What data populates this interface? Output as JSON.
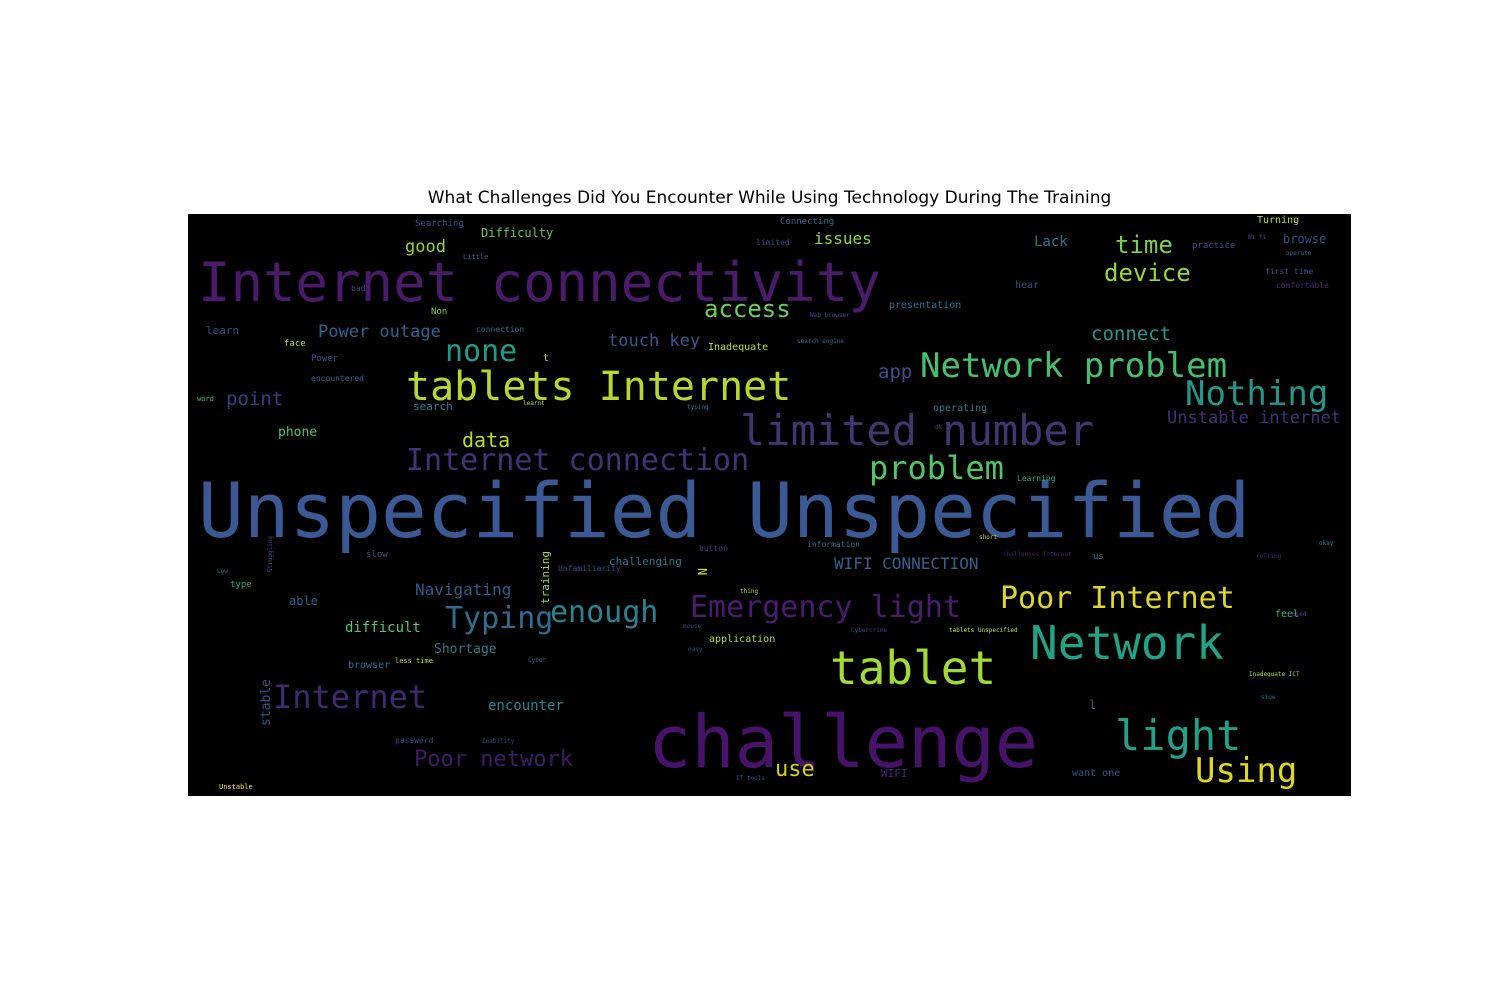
{
  "title": "What Challenges Did You Encounter While Using Technology During The Training",
  "words": [
    {
      "text": "Unspecified Unspecified",
      "color": "#3b5a95"
    },
    {
      "text": "Internet connectivity",
      "color": "#4a1a6b"
    },
    {
      "text": "challenge",
      "color": "#47136a"
    },
    {
      "text": "tablets Internet",
      "color": "#b8d62f"
    },
    {
      "text": "limited number",
      "color": "#41366f"
    },
    {
      "text": "Network problem",
      "color": "#46c06f"
    },
    {
      "text": "Nothing",
      "color": "#26958a"
    },
    {
      "text": "tablet",
      "color": "#a2da37"
    },
    {
      "text": "Network",
      "color": "#20a386"
    },
    {
      "text": "light",
      "color": "#21a08a"
    },
    {
      "text": "Using",
      "color": "#e0d721"
    },
    {
      "text": "Poor Internet",
      "color": "#ddd72b"
    },
    {
      "text": "Emergency light",
      "color": "#4b1b6e"
    },
    {
      "text": "Internet connection",
      "color": "#433274"
    },
    {
      "text": "problem",
      "color": "#52c569"
    },
    {
      "text": "Internet",
      "color": "#3f2a70"
    },
    {
      "text": "enough",
      "color": "#2c828e"
    },
    {
      "text": "Typing",
      "color": "#2f6c8d"
    },
    {
      "text": "Poor network",
      "color": "#3e1c65"
    },
    {
      "text": "none",
      "color": "#1f9c88"
    },
    {
      "text": "access",
      "color": "#6cce59"
    },
    {
      "text": "time",
      "color": "#7ad151"
    },
    {
      "text": "device",
      "color": "#93d741"
    },
    {
      "text": "connect",
      "color": "#22988a"
    },
    {
      "text": "data",
      "color": "#bddc2b"
    },
    {
      "text": "use",
      "color": "#d8d219"
    },
    {
      "text": "Unstable internet",
      "color": "#3c3378"
    },
    {
      "text": "WIFI CONNECTION",
      "color": "#34618d"
    },
    {
      "text": "point",
      "color": "#3f3b82"
    },
    {
      "text": "Power outage",
      "color": "#30648e"
    },
    {
      "text": "touch key",
      "color": "#35588c"
    },
    {
      "text": "app",
      "color": "#3c4f8a"
    },
    {
      "text": "good",
      "color": "#9ad43a"
    },
    {
      "text": "issues",
      "color": "#8fd644"
    },
    {
      "text": "Lack",
      "color": "#2a788e"
    },
    {
      "text": "Difficulty",
      "color": "#5fc863"
    },
    {
      "text": "Navigating",
      "color": "#2f5c8c"
    },
    {
      "text": "encounter",
      "color": "#23888e"
    },
    {
      "text": "Shortage",
      "color": "#2a7a8e"
    },
    {
      "text": "difficult",
      "color": "#5ec962"
    },
    {
      "text": "phone",
      "color": "#48c16e"
    },
    {
      "text": "search",
      "color": "#28838e"
    },
    {
      "text": "browse",
      "color": "#3c4b89"
    },
    {
      "text": "learn",
      "color": "#3a4c8a"
    },
    {
      "text": "able",
      "color": "#365c8d"
    },
    {
      "text": "stable",
      "color": "#3b5288"
    },
    {
      "text": "training",
      "color": "#a5db36"
    },
    {
      "text": "challenging",
      "color": "#2a788e"
    },
    {
      "text": "hear",
      "color": "#3e4a89"
    },
    {
      "text": "presentation",
      "color": "#2c718e"
    },
    {
      "text": "Inadequate",
      "color": "#c2df23"
    },
    {
      "text": "application",
      "color": "#b5de2b"
    },
    {
      "text": "type",
      "color": "#2ea37f"
    },
    {
      "text": "browser",
      "color": "#29788e"
    },
    {
      "text": "feel",
      "color": "#35b779"
    },
    {
      "text": "operating",
      "color": "#2a7b8e"
    },
    {
      "text": "Turning",
      "color": "#b8de29"
    },
    {
      "text": "Searching",
      "color": "#3e4b8a"
    },
    {
      "text": "Connecting",
      "color": "#31688e"
    },
    {
      "text": "practice",
      "color": "#3b528b"
    },
    {
      "text": "first time",
      "color": "#3a548c"
    },
    {
      "text": "comfortable",
      "color": "#482677"
    },
    {
      "text": "face",
      "color": "#c2df23"
    },
    {
      "text": "Non",
      "color": "#7cd250"
    },
    {
      "text": "Power",
      "color": "#3a548c"
    },
    {
      "text": "connection",
      "color": "#2d708e"
    },
    {
      "text": "encountered",
      "color": "#31688e"
    },
    {
      "text": "slow",
      "color": "#3b528b"
    },
    {
      "text": "Unfamiliarity",
      "color": "#3f4788"
    },
    {
      "text": "button",
      "color": "#443a83"
    },
    {
      "text": "information",
      "color": "#2d708e"
    },
    {
      "text": "WIFI",
      "color": "#482576"
    },
    {
      "text": "want one",
      "color": "#3c4f8a"
    },
    {
      "text": "password",
      "color": "#414487"
    },
    {
      "text": "less time",
      "color": "#c0df25"
    },
    {
      "text": "Learning",
      "color": "#28ae80"
    },
    {
      "text": "limited",
      "color": "#3e4c8a"
    },
    {
      "text": "bad",
      "color": "#3e4a89"
    },
    {
      "text": "Little",
      "color": "#32658e"
    },
    {
      "text": "us",
      "color": "#26828e"
    },
    {
      "text": "N",
      "color": "#d0e11c"
    },
    {
      "text": "t",
      "color": "#bddf26"
    },
    {
      "text": "l",
      "color": "#3b528b"
    },
    {
      "text": "word",
      "color": "#4ac16d"
    },
    {
      "text": "Unstable",
      "color": "#fde725"
    },
    {
      "text": "tablets Unspecified",
      "color": "#c8e020"
    },
    {
      "text": "Cybercrime",
      "color": "#3f4889"
    },
    {
      "text": "challenges Internet",
      "color": "#481f70"
    },
    {
      "text": "Inadequate ICT",
      "color": "#a8db34"
    },
    {
      "text": "search engine",
      "color": "#2c728e"
    },
    {
      "text": "ok",
      "color": "#3b528b"
    },
    {
      "text": "Inability",
      "color": "#3e4c8a"
    },
    {
      "text": "easy",
      "color": "#3f4788"
    },
    {
      "text": "short",
      "color": "#c2df23"
    },
    {
      "text": "Wi fi",
      "color": "#3b528b"
    },
    {
      "text": "okay",
      "color": "#26828e"
    },
    {
      "text": "Low",
      "color": "#2a768e"
    },
    {
      "text": "thing",
      "color": "#bddf26"
    },
    {
      "text": "rolling",
      "color": "#482475"
    },
    {
      "text": "slow",
      "color": "#2c728e"
    },
    {
      "text": "Web browser",
      "color": "#3b528b"
    },
    {
      "text": "used",
      "color": "#3e4a89"
    },
    {
      "text": "learnt",
      "color": "#c2df23"
    },
    {
      "text": "Struggling",
      "color": "#3a548c"
    },
    {
      "text": "Cyber",
      "color": "#306a8e"
    },
    {
      "text": "typing",
      "color": "#2a788e"
    },
    {
      "text": "operate",
      "color": "#31688e"
    },
    {
      "text": "mouse",
      "color": "#3e4a89"
    },
    {
      "text": "IT tools",
      "color": "#3b528b"
    }
  ]
}
